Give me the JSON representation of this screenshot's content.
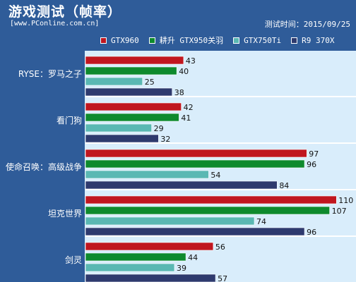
{
  "header": {
    "title": "游戏测试（帧率）",
    "website": "[www.PConline.com.cn]",
    "date": "测试时间：2015/09/25"
  },
  "chart_data": {
    "type": "bar",
    "orientation": "horizontal",
    "categories": [
      "RYSE：罗马之子",
      "看门狗",
      "使命召唤：高级战争",
      "坦克世界",
      "剑灵"
    ],
    "series": [
      {
        "name": "GTX960",
        "color": "#c0161f",
        "values": [
          43,
          42,
          97,
          110,
          56
        ]
      },
      {
        "name": "耕升 GTX950关羽",
        "color": "#0e8a2d",
        "values": [
          40,
          41,
          96,
          107,
          44
        ]
      },
      {
        "name": "GTX750Ti",
        "color": "#5ab8b3",
        "values": [
          25,
          29,
          54,
          74,
          39
        ]
      },
      {
        "name": "R9 370X",
        "color": "#2e3a6e",
        "values": [
          38,
          32,
          84,
          96,
          57
        ]
      }
    ],
    "xlim": [
      0,
      120
    ],
    "grid": false,
    "legend_position": "top"
  }
}
